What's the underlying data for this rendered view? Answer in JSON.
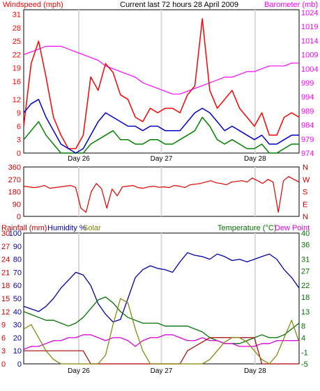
{
  "charts_header": {
    "title": "Current last 72 hours 28 April 2009"
  },
  "chart_data": [
    {
      "type": "line",
      "title": "Current last 72 hours 28 April 2009",
      "left_axis_label": "Windspeed (mph)",
      "right_axis_label": "Barometer (mb)",
      "left_ticks": [
        0,
        3,
        6,
        9,
        12,
        16,
        19,
        22,
        25,
        28,
        31
      ],
      "right_ticks": [
        974,
        979,
        984,
        989,
        994,
        999,
        1004,
        1009,
        1014,
        1019,
        1024
      ],
      "left_ylim": [
        0,
        32
      ],
      "right_ylim": [
        974,
        1025
      ],
      "x_labels": [
        "Day 26",
        "Day 27",
        "Day 28"
      ],
      "colors": {
        "gust": "#ff0000",
        "avg": "#0000cc",
        "low": "#008000",
        "baro": "#ff00ff"
      },
      "series": [
        {
          "key": "gust",
          "values": [
            6,
            20,
            25,
            17,
            8,
            4,
            1,
            1,
            4,
            17,
            14,
            20,
            18,
            13,
            12,
            8,
            7,
            10,
            9,
            10,
            10,
            9,
            13,
            15,
            30,
            14,
            10,
            12,
            14,
            10,
            8,
            6,
            9,
            4,
            4,
            8,
            9,
            8
          ]
        },
        {
          "key": "avg",
          "values": [
            9,
            11,
            12,
            8,
            5,
            2,
            1,
            0,
            1,
            4,
            7,
            9,
            8,
            7,
            6,
            6,
            5,
            6,
            6,
            5,
            5,
            5,
            7,
            9,
            10,
            9,
            7,
            5,
            6,
            5,
            4,
            3,
            4,
            2,
            2,
            3,
            4,
            4
          ]
        },
        {
          "key": "low",
          "values": [
            3,
            5,
            7,
            4,
            2,
            0,
            0,
            0,
            0,
            2,
            3,
            4,
            5,
            3,
            3,
            2,
            2,
            3,
            3,
            2,
            2,
            3,
            4,
            5,
            8,
            6,
            3,
            2,
            3,
            2,
            1,
            1,
            2,
            0,
            0,
            1,
            2,
            2
          ]
        },
        {
          "key": "baro",
          "values": [
            1009,
            1010,
            1011,
            1012,
            1012,
            1012,
            1011,
            1010,
            1009,
            1008,
            1007,
            1005,
            1004,
            1003,
            1002,
            1001,
            999,
            998,
            997,
            996,
            995,
            995,
            996,
            997,
            998,
            999,
            1000,
            1001,
            1001,
            1002,
            1003,
            1003,
            1004,
            1005,
            1005,
            1005,
            1006,
            1006
          ]
        }
      ]
    },
    {
      "type": "line",
      "right_axis_label_letters": [
        "N",
        "W",
        "S",
        "E",
        "N"
      ],
      "left_ticks": [
        0,
        90,
        180,
        270,
        360
      ],
      "left_ylim": [
        0,
        360
      ],
      "color": "#dd0000",
      "series": [
        {
          "key": "dir",
          "values": [
            220,
            215,
            210,
            215,
            225,
            205,
            210,
            215,
            220,
            225,
            212,
            60,
            30,
            180,
            240,
            200,
            60,
            200,
            150,
            215,
            220,
            225,
            210,
            205,
            215,
            220,
            212,
            215,
            210,
            225,
            220,
            210,
            230,
            235,
            240,
            250,
            260,
            245,
            240,
            230,
            250,
            255,
            260,
            250,
            280,
            260,
            240,
            270,
            250,
            30,
            260,
            290,
            270,
            250
          ]
        }
      ]
    },
    {
      "type": "line",
      "left_axis_label_1": "Rainfall (mm)",
      "left_axis_label_2": "Humidity %",
      "left_axis_label_3": "Solar",
      "right_axis_label_1": "Temperature (°C)",
      "right_axis_label_2": "Dew Point",
      "left_ticks_rain": [
        0,
        3,
        6,
        9,
        12,
        15,
        18,
        21,
        24,
        27,
        30
      ],
      "left_ticks_hum": [
        0,
        10,
        20,
        30,
        40,
        50,
        60,
        70,
        80,
        90,
        100
      ],
      "right_ticks": [
        -5,
        -1,
        4,
        8,
        13,
        18,
        22,
        27,
        31,
        36,
        40
      ],
      "left_ylim": [
        0,
        100
      ],
      "right_ylim": [
        -5,
        40
      ],
      "x_labels": [
        "Day 26",
        "Day 27",
        "Day 28"
      ],
      "colors": {
        "humidity": "#0000aa",
        "temperature": "#007000",
        "dewpoint": "#dd00dd",
        "rainfall": "#aa0000",
        "solar": "#808000"
      },
      "series": [
        {
          "key": "humidity",
          "values": [
            44,
            42,
            40,
            44,
            50,
            58,
            64,
            70,
            68,
            60,
            46,
            38,
            32,
            34,
            50,
            66,
            72,
            75,
            73,
            72,
            70,
            78,
            85,
            83,
            82,
            80,
            84,
            82,
            79,
            80,
            78,
            80,
            82,
            84,
            80,
            72,
            66,
            58
          ]
        },
        {
          "key": "temperature",
          "values": [
            13,
            12,
            11,
            10,
            10,
            9,
            8,
            9,
            11,
            14,
            17,
            18,
            16,
            13,
            11,
            10,
            9,
            9,
            9,
            8,
            8,
            8,
            8,
            7,
            6,
            4,
            3,
            2,
            2,
            2,
            3,
            4,
            5,
            4,
            4,
            5,
            7,
            9
          ]
        },
        {
          "key": "dewpoint",
          "values": [
            0,
            1,
            1,
            2,
            3,
            3,
            4,
            4,
            5,
            5,
            4,
            3,
            4,
            4,
            3,
            1,
            3,
            4,
            4,
            5,
            5,
            4,
            3,
            3,
            4,
            3,
            3,
            2,
            2,
            1,
            1,
            1,
            2,
            2,
            3,
            3,
            3,
            3
          ]
        },
        {
          "key": "rainfall",
          "values": [
            3,
            3,
            3,
            3,
            3,
            3,
            3,
            3,
            3,
            0,
            0,
            0,
            0,
            0,
            0,
            0,
            0,
            0,
            0,
            0,
            0,
            0,
            3,
            4,
            5,
            6,
            6,
            6,
            6,
            6,
            6,
            6,
            0,
            0,
            0,
            0,
            0,
            0
          ]
        },
        {
          "key": "solar",
          "values": [
            8,
            9,
            6,
            3,
            1,
            0,
            0,
            0,
            0,
            0,
            0,
            2,
            9,
            15,
            14,
            8,
            3,
            0,
            0,
            0,
            0,
            0,
            0,
            0,
            0,
            1,
            3,
            5,
            6,
            6,
            5,
            3,
            1,
            0,
            2,
            6,
            10,
            5
          ]
        }
      ]
    }
  ]
}
